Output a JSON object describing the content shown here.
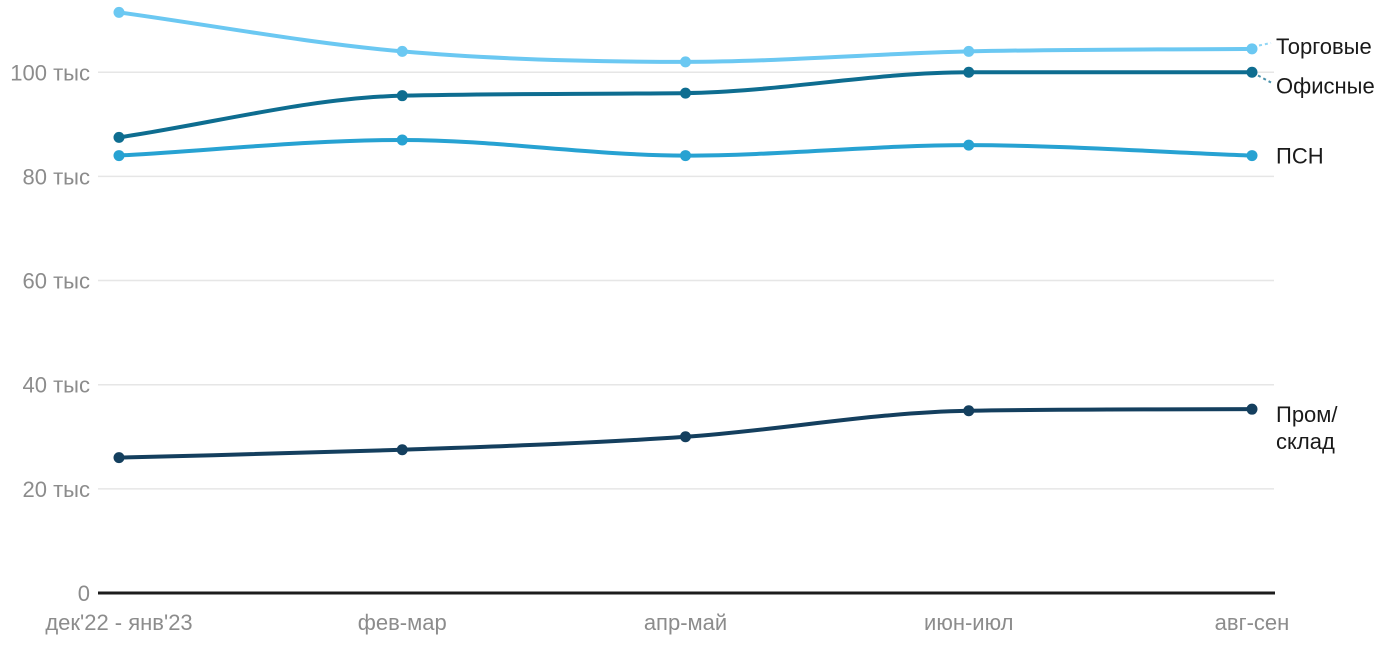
{
  "page": {
    "background": "#ffffff"
  },
  "chart_data": {
    "type": "line",
    "title": "",
    "xlabel": "",
    "ylabel": "",
    "unit": "тыс",
    "categories": [
      "дек'22 - янв'23",
      "фев-мар",
      "апр-май",
      "июн-июл",
      "авг-сен"
    ],
    "series": [
      {
        "name": "Торговые",
        "label_lines": [
          "Торговые"
        ],
        "color": "#6bc8f2",
        "values": [
          111.5,
          104,
          102,
          104,
          104.5
        ]
      },
      {
        "name": "Офисные",
        "label_lines": [
          "Офисные"
        ],
        "color": "#0e6d90",
        "values": [
          87.5,
          95.5,
          96,
          100,
          100
        ]
      },
      {
        "name": "ПСН",
        "label_lines": [
          "ПСН"
        ],
        "color": "#27a2d2",
        "values": [
          84,
          87,
          84,
          86,
          84
        ]
      },
      {
        "name": "Пром/склад",
        "label_lines": [
          "Пром/",
          "склад"
        ],
        "color": "#143f5e",
        "values": [
          26,
          27.5,
          30,
          35,
          35.3
        ]
      }
    ],
    "y_axis": {
      "min": 0,
      "max": 113,
      "grid": true,
      "ticks": [
        {
          "value": 0,
          "label": "0"
        },
        {
          "value": 20,
          "label": "20 тыс"
        },
        {
          "value": 40,
          "label": "40 тыс"
        },
        {
          "value": 60,
          "label": "60 тыс"
        },
        {
          "value": 80,
          "label": "80 тыс"
        },
        {
          "value": 100,
          "label": "100 тыс"
        }
      ]
    },
    "legend_position": "right-of-line-end",
    "colors": {
      "grid": "#e6e6e6",
      "axis_line": "#1c1c1c",
      "axis_text": "#8c8c8c",
      "label_text": "#1a1a1a"
    }
  }
}
